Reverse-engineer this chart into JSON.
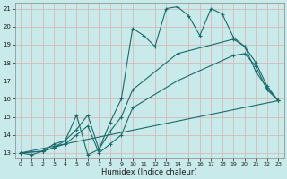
{
  "xlabel": "Humidex (Indice chaleur)",
  "bg_color": "#c8eaea",
  "grid_color": "#d8b8b8",
  "line_color": "#1a6b6b",
  "xlim": [
    -0.5,
    23.5
  ],
  "ylim": [
    12.7,
    21.3
  ],
  "xticks": [
    0,
    1,
    2,
    3,
    4,
    5,
    6,
    7,
    8,
    9,
    10,
    11,
    12,
    13,
    14,
    15,
    16,
    17,
    18,
    19,
    20,
    21,
    22,
    23
  ],
  "yticks": [
    13,
    14,
    15,
    16,
    17,
    18,
    19,
    20,
    21
  ],
  "line1_x": [
    0,
    1,
    2,
    3,
    4,
    5,
    6,
    7,
    8,
    9,
    10,
    11,
    12,
    13,
    14,
    15,
    16,
    17,
    18,
    19,
    20,
    21,
    22,
    23
  ],
  "line1_y": [
    13,
    12.9,
    13.1,
    13.3,
    13.7,
    15.1,
    12.9,
    13.2,
    14.7,
    16.0,
    19.9,
    19.5,
    18.9,
    21.0,
    21.1,
    20.6,
    19.5,
    21.0,
    20.7,
    19.4,
    18.9,
    17.5,
    16.6,
    15.9
  ],
  "line2_x": [
    0,
    2,
    3,
    4,
    5,
    6,
    7,
    8,
    9,
    10,
    14,
    19,
    20,
    21,
    22,
    23
  ],
  "line2_y": [
    13,
    13.1,
    13.5,
    13.7,
    14.3,
    15.1,
    13.2,
    14.2,
    15.0,
    16.5,
    18.5,
    19.3,
    18.9,
    18.0,
    16.7,
    15.9
  ],
  "line3_x": [
    0,
    2,
    3,
    4,
    5,
    6,
    7,
    8,
    9,
    10,
    14,
    19,
    20,
    21,
    22,
    23
  ],
  "line3_y": [
    13,
    13.1,
    13.3,
    13.5,
    14.0,
    14.5,
    13.0,
    13.5,
    14.0,
    15.5,
    17.0,
    18.4,
    18.5,
    17.8,
    16.5,
    15.9
  ],
  "line4_x": [
    0,
    23
  ],
  "line4_y": [
    13,
    15.9
  ]
}
